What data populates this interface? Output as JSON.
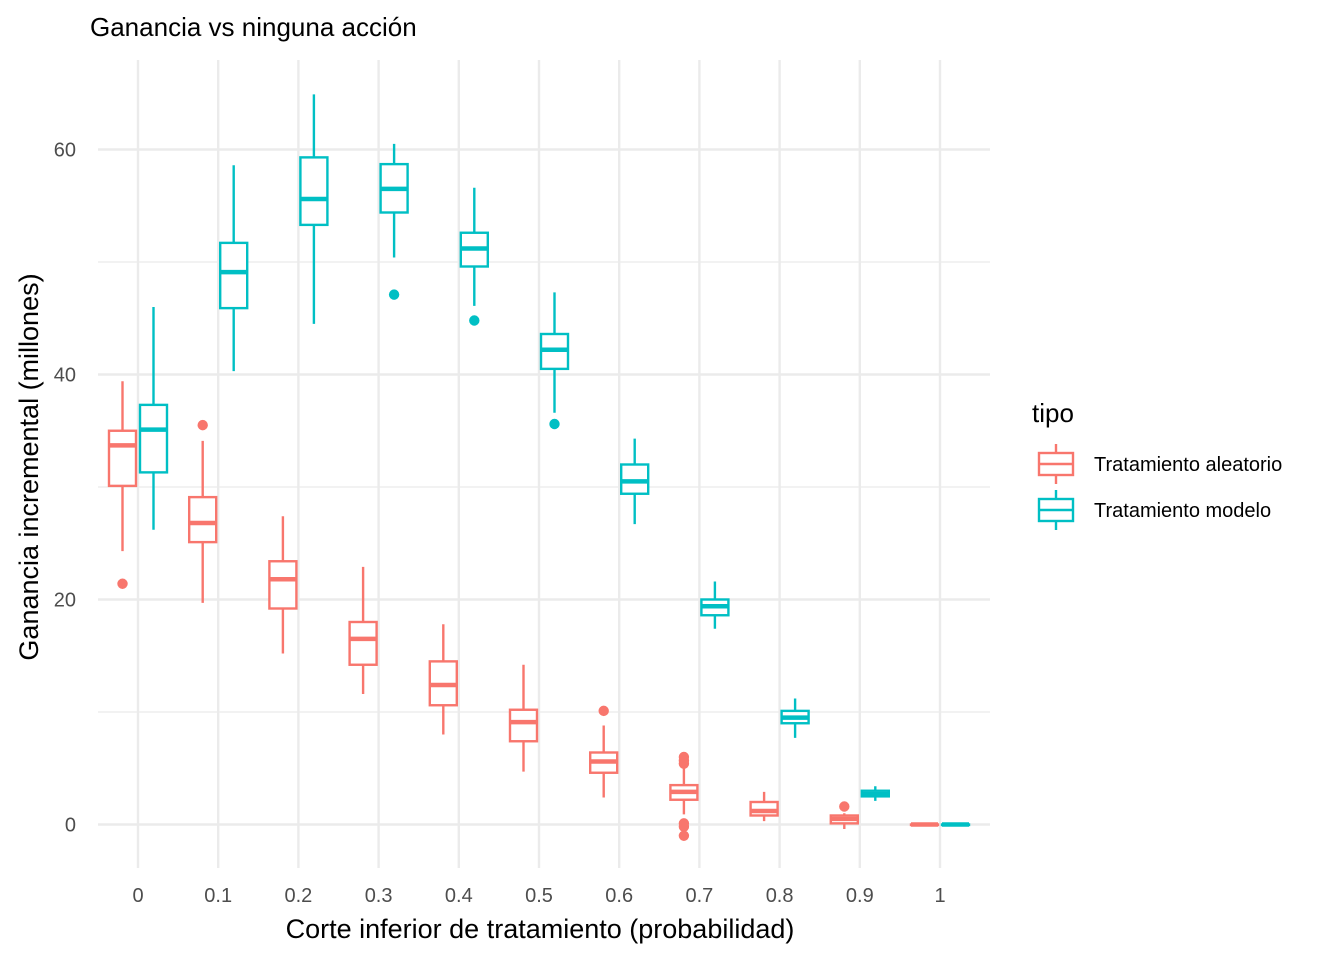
{
  "chart_data": {
    "type": "boxplot",
    "title": "Ganancia vs ninguna acción",
    "xlabel": "Corte inferior de tratamiento (probabilidad)",
    "ylabel": "Ganancia incremental (millones)",
    "categories": [
      "0",
      "0.1",
      "0.2",
      "0.3",
      "0.4",
      "0.5",
      "0.6",
      "0.7",
      "0.8",
      "0.9",
      "1"
    ],
    "yticks": [
      0,
      20,
      40,
      60
    ],
    "ylim": [
      -4,
      68
    ],
    "grid": true,
    "legend": {
      "title": "tipo",
      "position": "right"
    },
    "series": [
      {
        "name": "Tratamiento aleatorio",
        "color": "#F8766D",
        "boxes": [
          {
            "x": "0",
            "whisker_low": 24.3,
            "q1": 30.1,
            "median": 33.7,
            "q3": 35.0,
            "whisker_high": 39.4,
            "outliers": [
              21.4
            ]
          },
          {
            "x": "0.1",
            "whisker_low": 19.7,
            "q1": 25.1,
            "median": 26.8,
            "q3": 29.1,
            "whisker_high": 34.1,
            "outliers": [
              35.5
            ]
          },
          {
            "x": "0.2",
            "whisker_low": 15.2,
            "q1": 19.2,
            "median": 21.8,
            "q3": 23.4,
            "whisker_high": 27.4,
            "outliers": []
          },
          {
            "x": "0.3",
            "whisker_low": 11.6,
            "q1": 14.2,
            "median": 16.5,
            "q3": 18.0,
            "whisker_high": 22.9,
            "outliers": []
          },
          {
            "x": "0.4",
            "whisker_low": 8.0,
            "q1": 10.6,
            "median": 12.4,
            "q3": 14.5,
            "whisker_high": 17.8,
            "outliers": []
          },
          {
            "x": "0.5",
            "whisker_low": 4.7,
            "q1": 7.4,
            "median": 9.1,
            "q3": 10.2,
            "whisker_high": 14.2,
            "outliers": []
          },
          {
            "x": "0.6",
            "whisker_low": 2.4,
            "q1": 4.6,
            "median": 5.6,
            "q3": 6.4,
            "whisker_high": 8.8,
            "outliers": [
              10.1
            ]
          },
          {
            "x": "0.7",
            "whisker_low": 0.9,
            "q1": 2.2,
            "median": 2.9,
            "q3": 3.5,
            "whisker_high": 5.0,
            "outliers": [
              6.0,
              5.7,
              5.4,
              0.1,
              -0.2,
              -1.0
            ]
          },
          {
            "x": "0.8",
            "whisker_low": 0.3,
            "q1": 0.8,
            "median": 1.2,
            "q3": 2.0,
            "whisker_high": 2.9,
            "outliers": []
          },
          {
            "x": "0.9",
            "whisker_low": -0.4,
            "q1": 0.1,
            "median": 0.5,
            "q3": 0.8,
            "whisker_high": 1.0,
            "outliers": [
              1.6
            ]
          },
          {
            "x": "1",
            "whisker_low": 0.0,
            "q1": 0.0,
            "median": 0.0,
            "q3": 0.0,
            "whisker_high": 0.0,
            "outliers": []
          }
        ]
      },
      {
        "name": "Tratamiento modelo",
        "color": "#00BFC4",
        "boxes": [
          {
            "x": "0",
            "whisker_low": 26.2,
            "q1": 31.3,
            "median": 35.1,
            "q3": 37.3,
            "whisker_high": 46.0,
            "outliers": []
          },
          {
            "x": "0.1",
            "whisker_low": 40.3,
            "q1": 45.9,
            "median": 49.1,
            "q3": 51.7,
            "whisker_high": 58.6,
            "outliers": []
          },
          {
            "x": "0.2",
            "whisker_low": 44.5,
            "q1": 53.3,
            "median": 55.6,
            "q3": 59.3,
            "whisker_high": 64.9,
            "outliers": []
          },
          {
            "x": "0.3",
            "whisker_low": 50.4,
            "q1": 54.4,
            "median": 56.5,
            "q3": 58.7,
            "whisker_high": 60.5,
            "outliers": [
              47.1
            ]
          },
          {
            "x": "0.4",
            "whisker_low": 46.1,
            "q1": 49.6,
            "median": 51.2,
            "q3": 52.6,
            "whisker_high": 56.6,
            "outliers": [
              44.8
            ]
          },
          {
            "x": "0.5",
            "whisker_low": 36.6,
            "q1": 40.5,
            "median": 42.2,
            "q3": 43.6,
            "whisker_high": 47.3,
            "outliers": [
              35.6
            ]
          },
          {
            "x": "0.6",
            "whisker_low": 26.7,
            "q1": 29.4,
            "median": 30.5,
            "q3": 32.0,
            "whisker_high": 34.3,
            "outliers": []
          },
          {
            "x": "0.7",
            "whisker_low": 17.4,
            "q1": 18.6,
            "median": 19.4,
            "q3": 20.0,
            "whisker_high": 21.6,
            "outliers": []
          },
          {
            "x": "0.8",
            "whisker_low": 7.7,
            "q1": 9.0,
            "median": 9.5,
            "q3": 10.1,
            "whisker_high": 11.2,
            "outliers": []
          },
          {
            "x": "0.9",
            "whisker_low": 2.1,
            "q1": 2.5,
            "median": 2.7,
            "q3": 3.0,
            "whisker_high": 3.4,
            "outliers": []
          },
          {
            "x": "1",
            "whisker_low": 0.0,
            "q1": 0.0,
            "median": 0.0,
            "q3": 0.0,
            "whisker_high": 0.0,
            "outliers": []
          }
        ]
      }
    ]
  }
}
